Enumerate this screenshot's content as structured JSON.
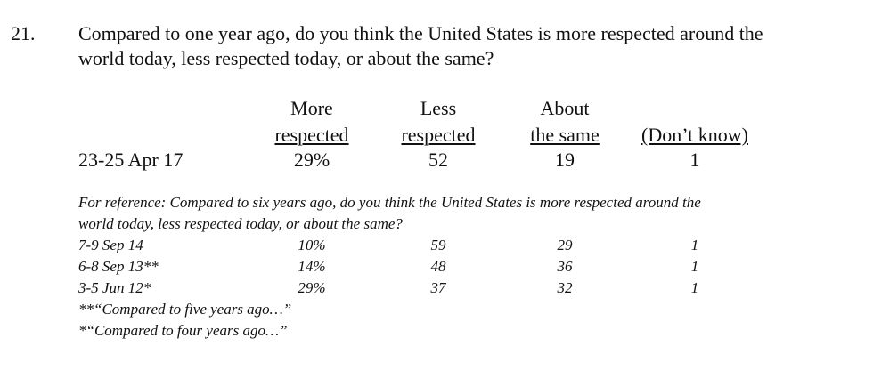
{
  "question": {
    "number": "21.",
    "lines": [
      "Compared to one year ago, do you think the United States is more respected around the",
      "world today, less respected today, or about the same?"
    ]
  },
  "table": {
    "headers": [
      [
        "More",
        "respected"
      ],
      [
        "Less",
        "respected"
      ],
      [
        "About",
        "the same"
      ],
      [
        "(Don’t know)"
      ]
    ],
    "rows": [
      [
        "23-25 Apr 17",
        "29%",
        "52",
        "19",
        "1"
      ]
    ]
  },
  "reference": {
    "lines": [
      "For reference: Compared to six years ago, do you think the United States is more respected around the",
      "world today, less respected today, or about the same?"
    ],
    "rows": [
      [
        "7-9 Sep 14",
        "10%",
        "59",
        "29",
        "1"
      ],
      [
        "6-8 Sep 13**",
        "14%",
        "48",
        "36",
        "1"
      ],
      [
        "3-5 Jun 12*",
        "29%",
        "37",
        "32",
        "1"
      ]
    ],
    "notes": [
      "**“Compared to five years ago…”",
      "*“Compared to four years ago…”"
    ]
  }
}
